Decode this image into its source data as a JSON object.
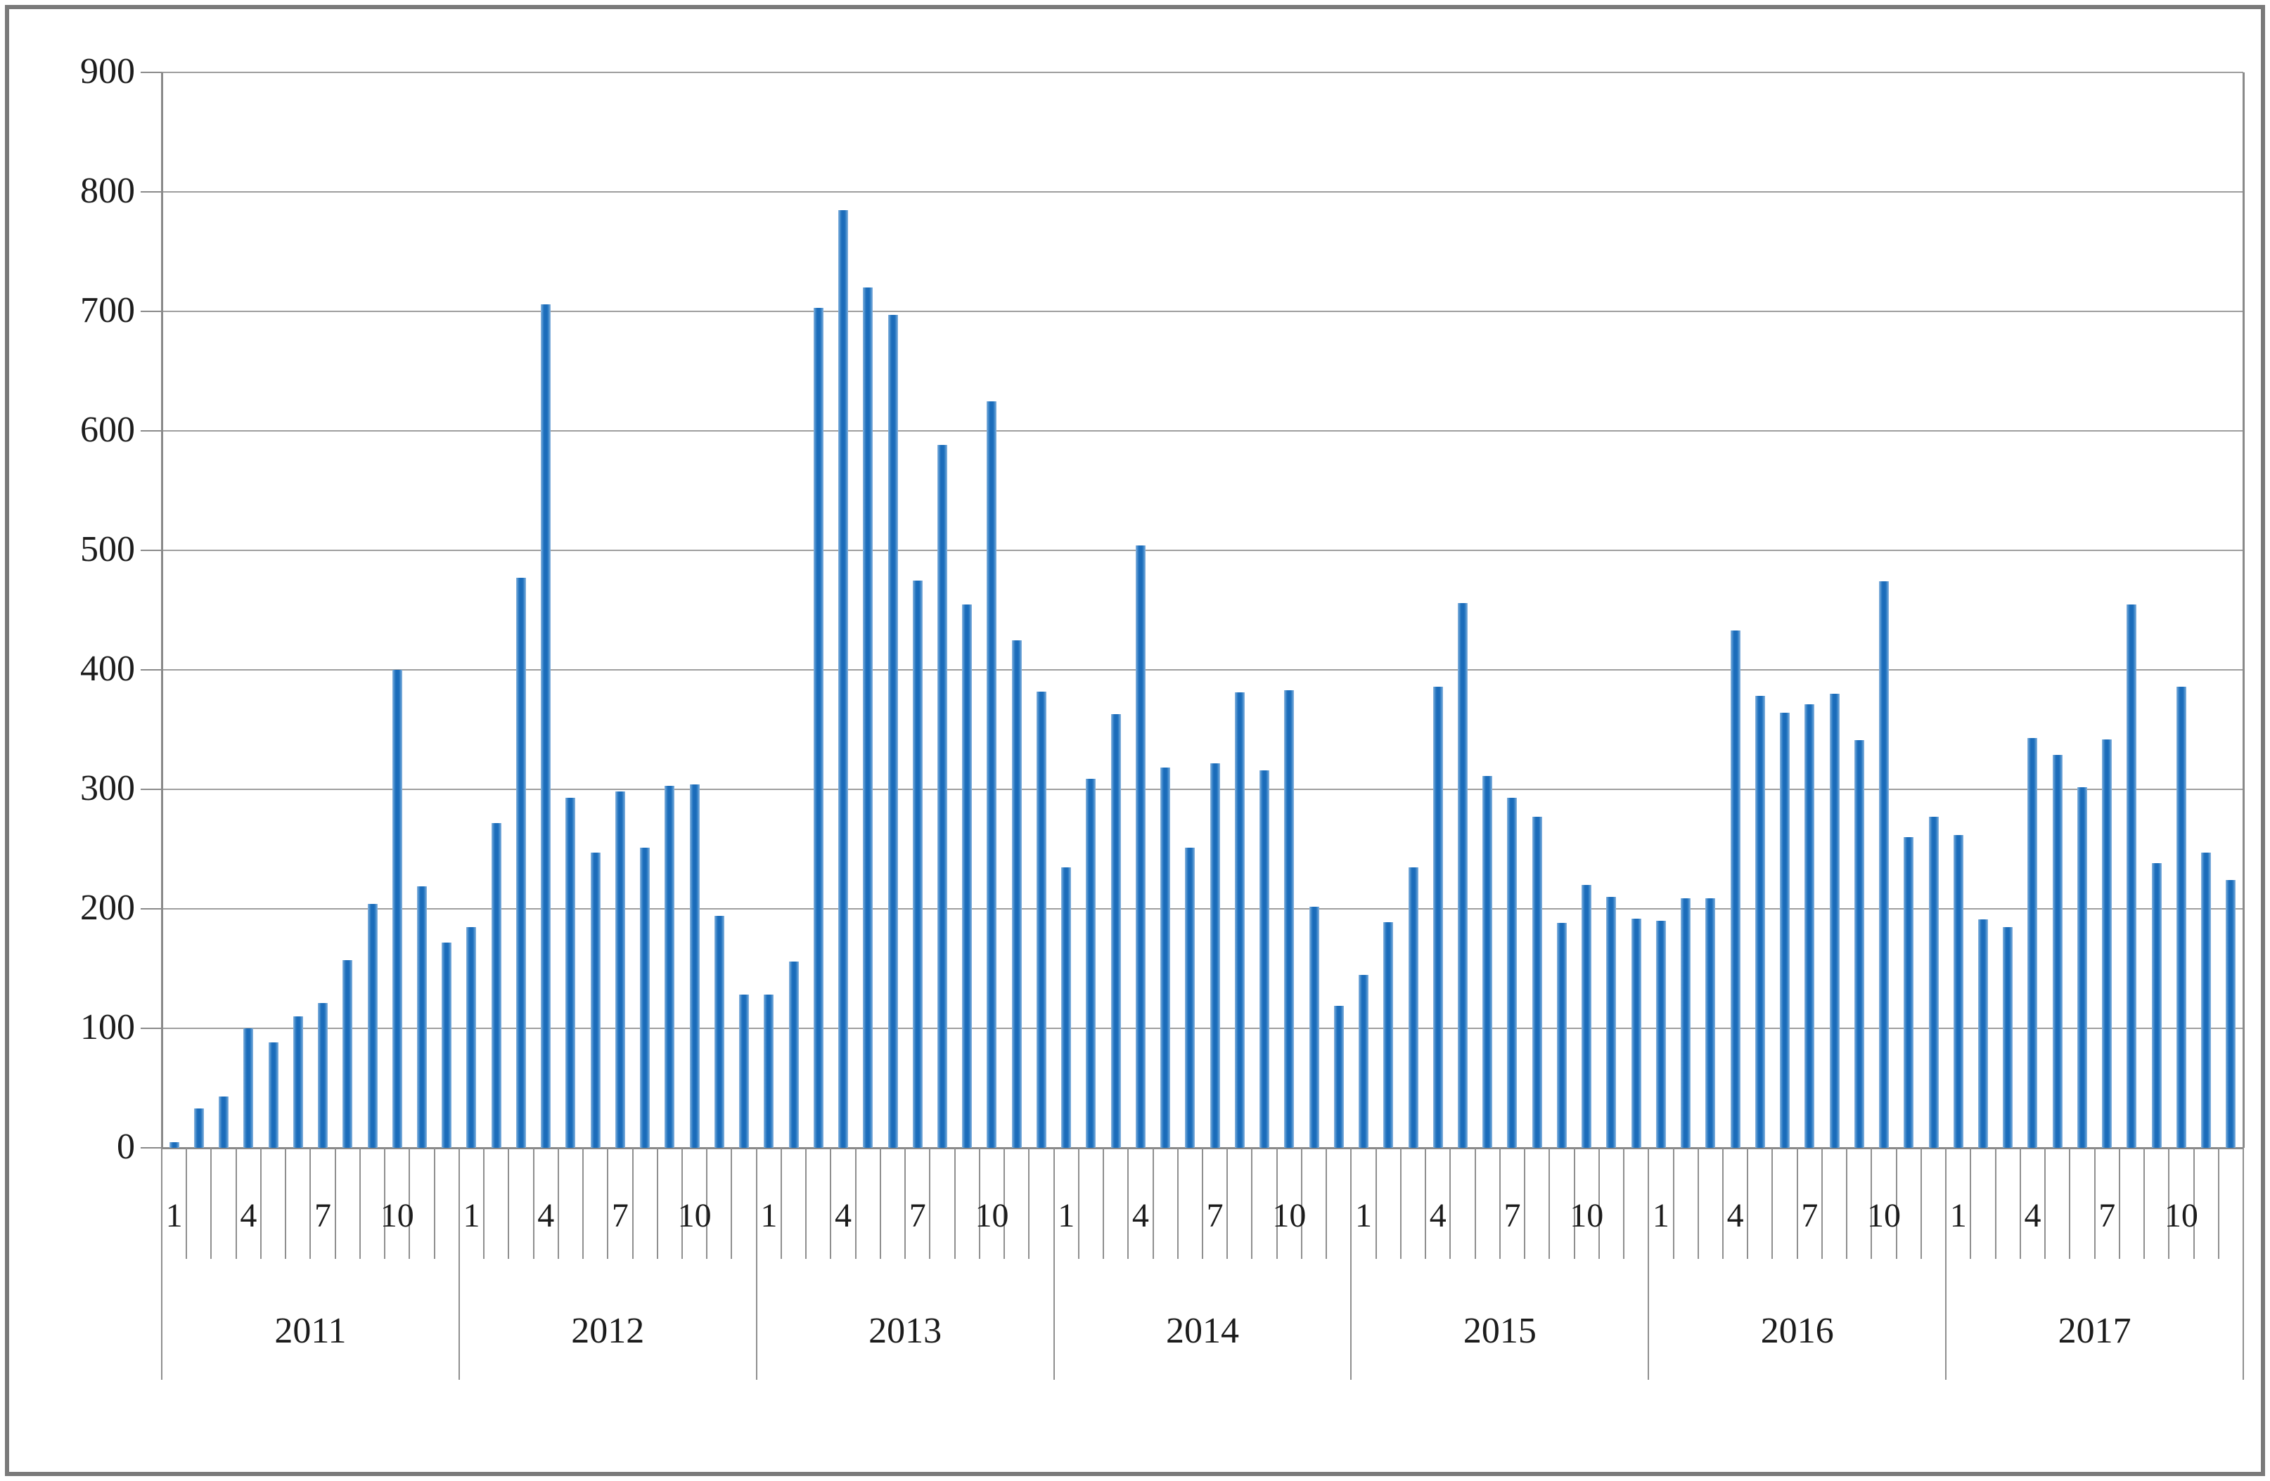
{
  "chart_data": {
    "type": "bar",
    "title": "",
    "xlabel": "",
    "ylabel": "",
    "ylim": [
      0,
      900
    ],
    "y_ticks": [
      0,
      100,
      200,
      300,
      400,
      500,
      600,
      700,
      800,
      900
    ],
    "grid": "horizontal",
    "legend": "none",
    "month_tick_labels": [
      "1",
      "4",
      "7",
      "10"
    ],
    "months_labeled": [
      1,
      4,
      7,
      10
    ],
    "series": [
      {
        "year": "2011",
        "values": [
          5,
          33,
          43,
          100,
          88,
          110,
          121,
          157,
          204,
          400,
          219,
          172
        ]
      },
      {
        "year": "2012",
        "values": [
          185,
          272,
          477,
          706,
          293,
          247,
          298,
          251,
          303,
          304,
          194,
          128
        ]
      },
      {
        "year": "2013",
        "values": [
          128,
          156,
          703,
          785,
          720,
          697,
          475,
          588,
          455,
          625,
          425,
          382
        ]
      },
      {
        "year": "2014",
        "values": [
          235,
          309,
          363,
          504,
          318,
          251,
          322,
          381,
          316,
          383,
          202,
          119
        ]
      },
      {
        "year": "2015",
        "values": [
          145,
          189,
          235,
          386,
          456,
          311,
          293,
          277,
          188,
          220,
          210,
          192
        ]
      },
      {
        "year": "2016",
        "values": [
          190,
          209,
          209,
          433,
          378,
          364,
          371,
          380,
          341,
          474,
          260,
          277
        ]
      },
      {
        "year": "2017",
        "values": [
          262,
          191,
          185,
          343,
          329,
          302,
          342,
          455,
          238,
          386,
          247,
          224
        ]
      }
    ]
  },
  "colors": {
    "bar_fill": "#1b6cba",
    "bar_edge_highlight": "#8ab4dd",
    "gridline": "#9e9e9e",
    "axis": "#8a8a8a",
    "text": "#1c1c1c",
    "frame_border": "#7a7a7a",
    "background": "#ffffff"
  }
}
